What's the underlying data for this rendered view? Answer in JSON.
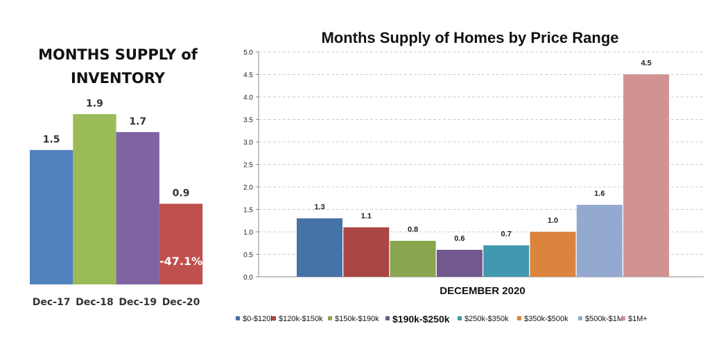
{
  "chart_data": [
    {
      "type": "bar",
      "title": "MONTHS SUPPLY of INVENTORY",
      "title_lines": [
        "MONTHS SUPPLY of",
        "INVENTORY"
      ],
      "categories": [
        "Dec-17",
        "Dec-18",
        "Dec-19",
        "Dec-20"
      ],
      "values": [
        1.5,
        1.9,
        1.7,
        0.9
      ],
      "value_labels": [
        "1.5",
        "1.9",
        "1.7",
        "0.9"
      ],
      "colors": [
        "#4f81bd",
        "#9bbb59",
        "#8064a2",
        "#c0504d"
      ],
      "annotation": "-47.1%",
      "grid": false
    },
    {
      "type": "bar",
      "title": "Months Supply of Homes by Price Range",
      "xlabel": "DECEMBER 2020",
      "ylabel": "",
      "ylim": [
        0,
        5
      ],
      "yticks": [
        "0.0",
        "0.5",
        "1.0",
        "1.5",
        "2.0",
        "2.5",
        "3.0",
        "3.5",
        "4.0",
        "4.5",
        "5.0"
      ],
      "grid": true,
      "legend": "bottom",
      "series": [
        {
          "name": "$0-$120k",
          "value": 1.3,
          "label": "1.3",
          "color": "#4572a7"
        },
        {
          "name": "$120k-$150k",
          "value": 1.1,
          "label": "1.1",
          "color": "#aa4643"
        },
        {
          "name": "$150k-$190k",
          "value": 0.8,
          "label": "0.8",
          "color": "#89a54e"
        },
        {
          "name": "$190k-$250k",
          "value": 0.6,
          "label": "0.6",
          "color": "#71588f"
        },
        {
          "name": "$250k-$350k",
          "value": 0.7,
          "label": "0.7",
          "color": "#4198af"
        },
        {
          "name": "$350k-$500k",
          "value": 1.0,
          "label": "1.0",
          "color": "#db843d"
        },
        {
          "name": "$500k-$1M",
          "value": 1.6,
          "label": "1.6",
          "color": "#93a9cf"
        },
        {
          "name": "$1M+",
          "value": 4.5,
          "label": "4.5",
          "color": "#d19392"
        }
      ]
    }
  ]
}
